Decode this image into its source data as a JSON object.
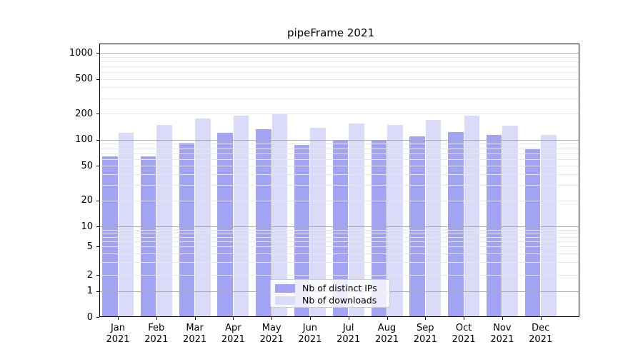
{
  "chart_data": {
    "type": "bar",
    "title": "pipeFrame 2021",
    "y_scale": "symlog",
    "y_ticks": [
      1000,
      500,
      200,
      100,
      50,
      20,
      10,
      5,
      2,
      1,
      0
    ],
    "categories": [
      "Jan",
      "Feb",
      "Mar",
      "Apr",
      "May",
      "Jun",
      "Jul",
      "Aug",
      "Sep",
      "Oct",
      "Nov",
      "Dec"
    ],
    "x_year_line": "2021",
    "series": [
      {
        "name": "Nb of distinct IPs",
        "key": "distinct-ips",
        "color": "#a3a3f3",
        "values": [
          65,
          65,
          93,
          121,
          131,
          88,
          100,
          98,
          109,
          122,
          113,
          80
        ]
      },
      {
        "name": "Nb of downloads",
        "key": "downloads",
        "color": "#dadaf9",
        "values": [
          120,
          149,
          174,
          190,
          198,
          137,
          153,
          148,
          168,
          188,
          145,
          113
        ]
      }
    ],
    "legend_position": "lower center",
    "grid": true,
    "ylim": [
      0,
      1280
    ]
  },
  "colors": {
    "major_grid": "#adadad",
    "minor_grid": "#e7e7e7",
    "axis": "#000000",
    "legend_border": "#cccccc"
  }
}
